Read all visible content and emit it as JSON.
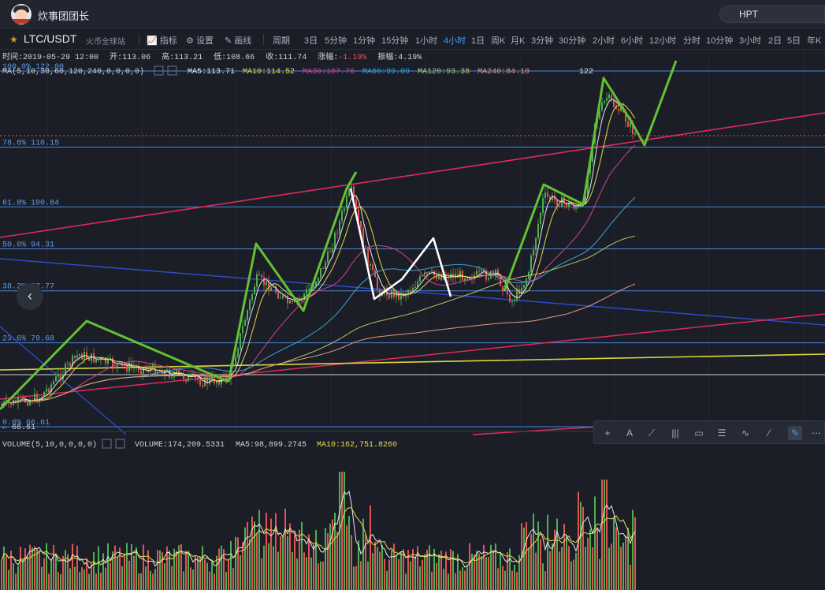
{
  "header": {
    "brand": "炊事团团长",
    "search_value": "HPT"
  },
  "toolbar": {
    "pair": "LTC/USDT",
    "pair_sub": "火币全球站",
    "indicator": "指标",
    "settings": "设置",
    "draw": "画线",
    "period_label": "周期",
    "intervals": [
      "3日",
      "5分钟",
      "1分钟",
      "15分钟",
      "1小时",
      "4小时",
      "1日",
      "周K",
      "月K",
      "3分钟",
      "30分钟",
      "2小时",
      "6小时",
      "12小时",
      "分时",
      "10分钟",
      "3小时",
      "2日",
      "5日",
      "年K"
    ],
    "active_interval": "4小时"
  },
  "info": {
    "time_label": "时间:",
    "time": "2019-05-29 12:00",
    "open_label": "开:",
    "open": "113.06",
    "high_label": "高:",
    "high": "113.21",
    "low_label": "低:",
    "low": "108.66",
    "close_label": "收:",
    "close": "111.74",
    "change_label": "涨幅:",
    "change": "-1.19%",
    "amp_label": "振幅:",
    "amp": "4.19%"
  },
  "ma": {
    "title": "MA(5,10,30,60,120,240,0,0,0,0)",
    "items": [
      {
        "label": "MA5:113.71",
        "color": "#e8e8e8"
      },
      {
        "label": "MA10:114.52",
        "color": "#e5d84a"
      },
      {
        "label": "MA30:107.76",
        "color": "#d6418f"
      },
      {
        "label": "MA60:99.09",
        "color": "#3aa3d9"
      },
      {
        "label": "MA120:93.38",
        "color": "#b6c46a"
      },
      {
        "label": "MA240:84.10",
        "color": "#e09a7e"
      }
    ]
  },
  "fib": [
    {
      "label": "100.0% 122.00",
      "value": 122.0
    },
    {
      "label": "78.6% 110.15",
      "value": 110.15
    },
    {
      "label": "61.8% 100.84",
      "value": 100.84
    },
    {
      "label": "50.0% 94.31",
      "value": 94.31
    },
    {
      "label": "38.2% 87.77",
      "value": 87.77
    },
    {
      "label": "23.6% 79.68",
      "value": 79.68
    },
    {
      "label": "0.0% 66.61",
      "value": 66.61
    }
  ],
  "price_marks": {
    "high_label": "122",
    "low_label": "← 66.61"
  },
  "volume": {
    "title": "VOLUME(5,10,0,0,0,0)",
    "vol": "VOLUME:174,209.5331",
    "ma5": "MA5:98,899.2745",
    "ma10": "MA10:162,751.8260"
  },
  "colors": {
    "up": "#4caf50",
    "down": "#e05454",
    "fib": "#4a86d8",
    "green_draw": "#63c132",
    "trend_red": "#e02a5c",
    "trend_blue": "#2d4bc7",
    "trend_yellow": "#d8d83a"
  }
}
